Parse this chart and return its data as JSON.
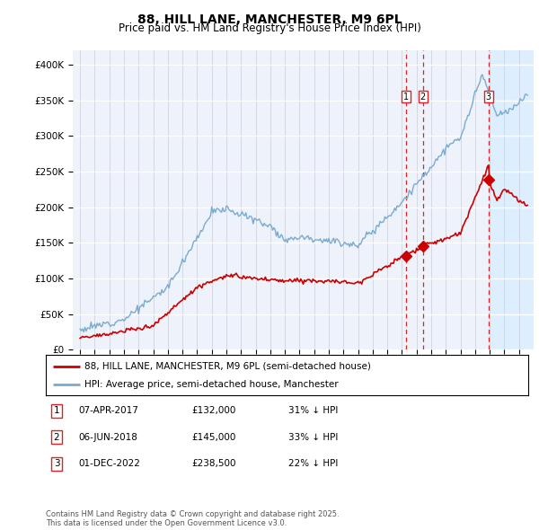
{
  "title": "88, HILL LANE, MANCHESTER, M9 6PL",
  "subtitle": "Price paid vs. HM Land Registry's House Price Index (HPI)",
  "legend_line1": "88, HILL LANE, MANCHESTER, M9 6PL (semi-detached house)",
  "legend_line2": "HPI: Average price, semi-detached house, Manchester",
  "footer": "Contains HM Land Registry data © Crown copyright and database right 2025.\nThis data is licensed under the Open Government Licence v3.0.",
  "sale_color": "#cc0000",
  "hpi_color": "#7aabcf",
  "vline_color": "#dd2222",
  "marker_color": "#cc0000",
  "highlight_color": "#ddeeff",
  "background_color": "#eef2fa",
  "grid_color": "#ffffff",
  "annotations": [
    {
      "label": "1",
      "date": "07-APR-2017",
      "price": "£132,000",
      "pct": "31% ↓ HPI"
    },
    {
      "label": "2",
      "date": "06-JUN-2018",
      "price": "£145,000",
      "pct": "33% ↓ HPI"
    },
    {
      "label": "3",
      "date": "01-DEC-2022",
      "price": "£238,500",
      "pct": "22% ↓ HPI"
    }
  ],
  "sale_dates": [
    2017.27,
    2018.43,
    2022.92
  ],
  "sale_prices": [
    132000,
    145000,
    238500
  ],
  "ylim": [
    0,
    420000
  ],
  "xlim": [
    1994.5,
    2026.0
  ],
  "yticks": [
    0,
    50000,
    100000,
    150000,
    200000,
    250000,
    300000,
    350000,
    400000
  ],
  "ytick_labels": [
    "£0",
    "£50K",
    "£100K",
    "£150K",
    "£200K",
    "£250K",
    "£300K",
    "£350K",
    "£400K"
  ]
}
